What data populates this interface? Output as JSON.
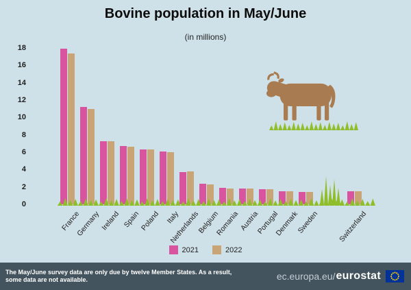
{
  "chart_data": {
    "type": "bar",
    "title": "Bovine population in May/June",
    "subtitle": "(in millions)",
    "categories": [
      "France",
      "Germany",
      "Ireland",
      "Spain",
      "Poland",
      "Italy",
      "Netherlands",
      "Belgium",
      "Romania",
      "Austria",
      "Portugal",
      "Denmark",
      "Sweden",
      "Switzerland"
    ],
    "series": [
      {
        "name": "2021",
        "color": "#d9549e",
        "values": [
          17.9,
          11.2,
          7.3,
          6.7,
          6.3,
          6.1,
          3.7,
          2.4,
          1.9,
          1.8,
          1.7,
          1.5,
          1.4,
          1.5
        ]
      },
      {
        "name": "2022",
        "color": "#c8a476",
        "values": [
          17.4,
          11.0,
          7.3,
          6.6,
          6.3,
          6.0,
          3.8,
          2.3,
          1.8,
          1.8,
          1.7,
          1.5,
          1.4,
          1.5
        ]
      }
    ],
    "ylim": [
      0,
      18
    ],
    "yticks": [
      0,
      2,
      4,
      6,
      8,
      10,
      12,
      14,
      16,
      18
    ],
    "legend_position": "bottom",
    "grid": false,
    "gap_before": "Switzerland",
    "x_tick_rotation": -50
  },
  "footer": {
    "note": "The May/June survey data are only due by twelve Member States. As a result, some data are not available.",
    "site_prefix": "ec.europa.eu/",
    "site_bold": "eurostat"
  },
  "icons": {
    "cow": "cow-icon",
    "grass": "grass-icon",
    "eu_flag": "eu-flag-icon"
  },
  "colors": {
    "background": "#cfe1e8",
    "grass": "#8fbe2b",
    "cow": "#a87c50",
    "footer_bar": "#44545e",
    "title_text": "#0c0c0c"
  }
}
